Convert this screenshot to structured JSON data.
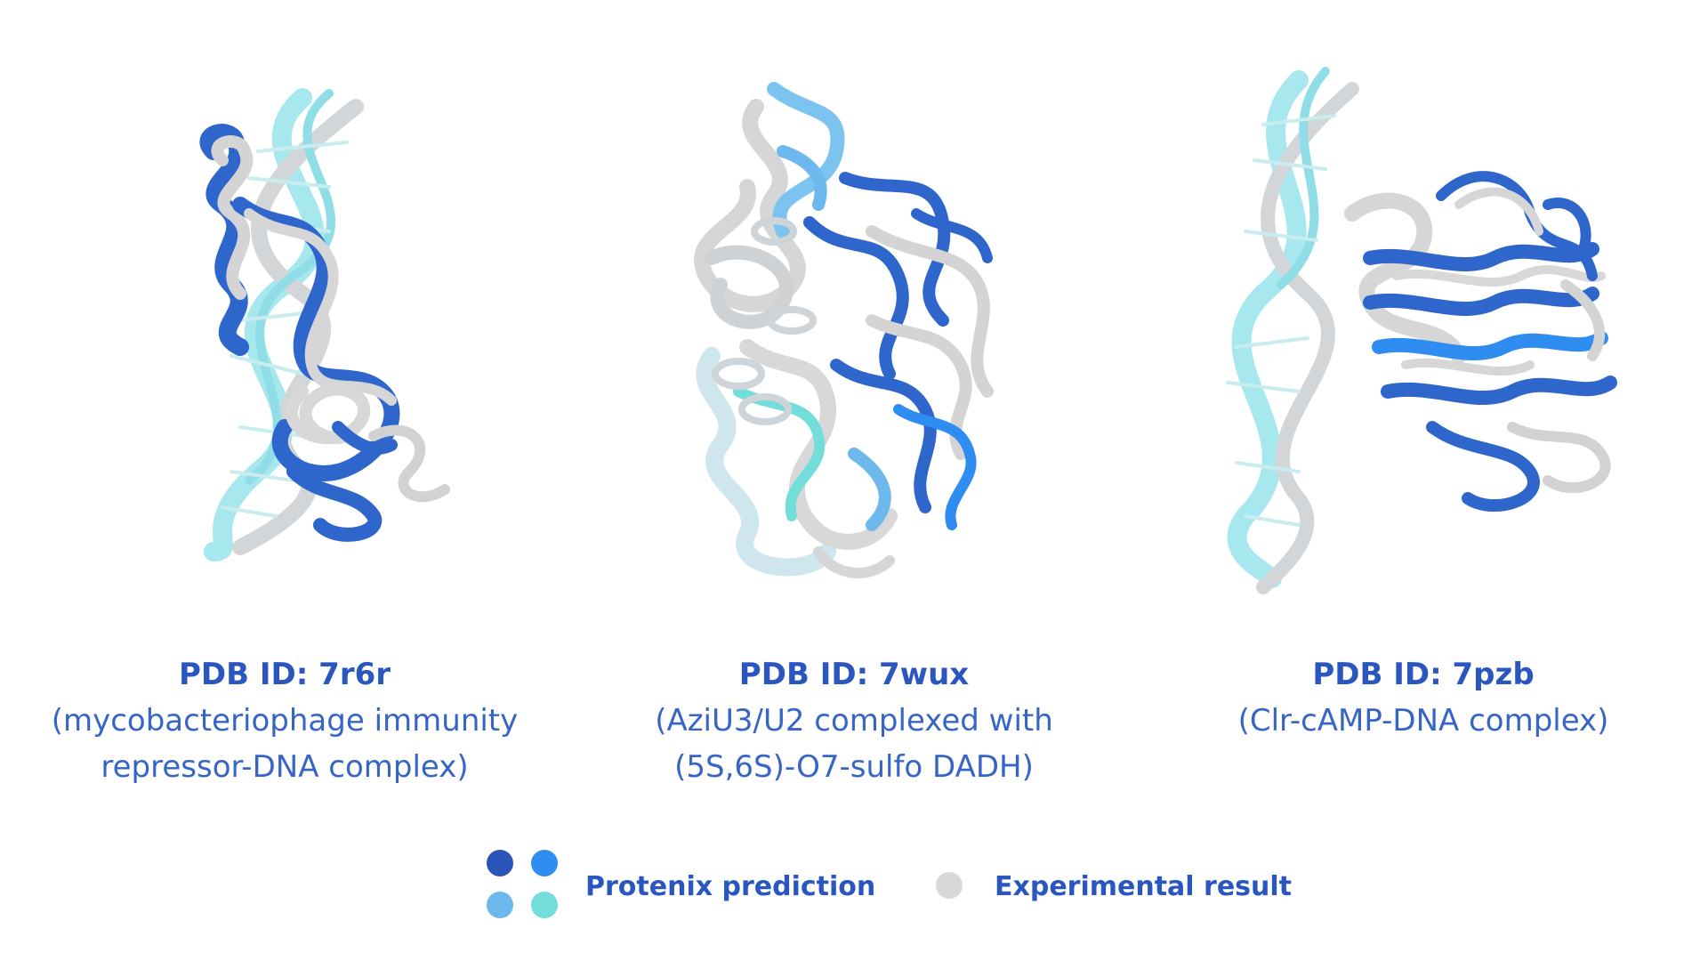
{
  "colors": {
    "prediction_dark": "#2955b8",
    "prediction_mid": "#2f8cf0",
    "prediction_light": "#6db8ec",
    "prediction_teal": "#72ddd9",
    "experimental": "#d8d8d8",
    "dna": "#9fe6ec",
    "text": "#2d5fc4"
  },
  "panels": [
    {
      "pdb_id": "PDB ID: 7r6r",
      "desc_line1": "(mycobacteriophage immunity",
      "desc_line2": "repressor-DNA complex)"
    },
    {
      "pdb_id": "PDB ID: 7wux",
      "desc_line1": "(AziU3/U2 complexed with",
      "desc_line2": "(5S,6S)-O7-sulfo DADH)"
    },
    {
      "pdb_id": "PDB ID: 7pzb",
      "desc_line1": "(Clr-cAMP-DNA complex)",
      "desc_line2": ""
    }
  ],
  "legend": {
    "prediction_label": "Protenix prediction",
    "experimental_label": "Experimental result"
  }
}
